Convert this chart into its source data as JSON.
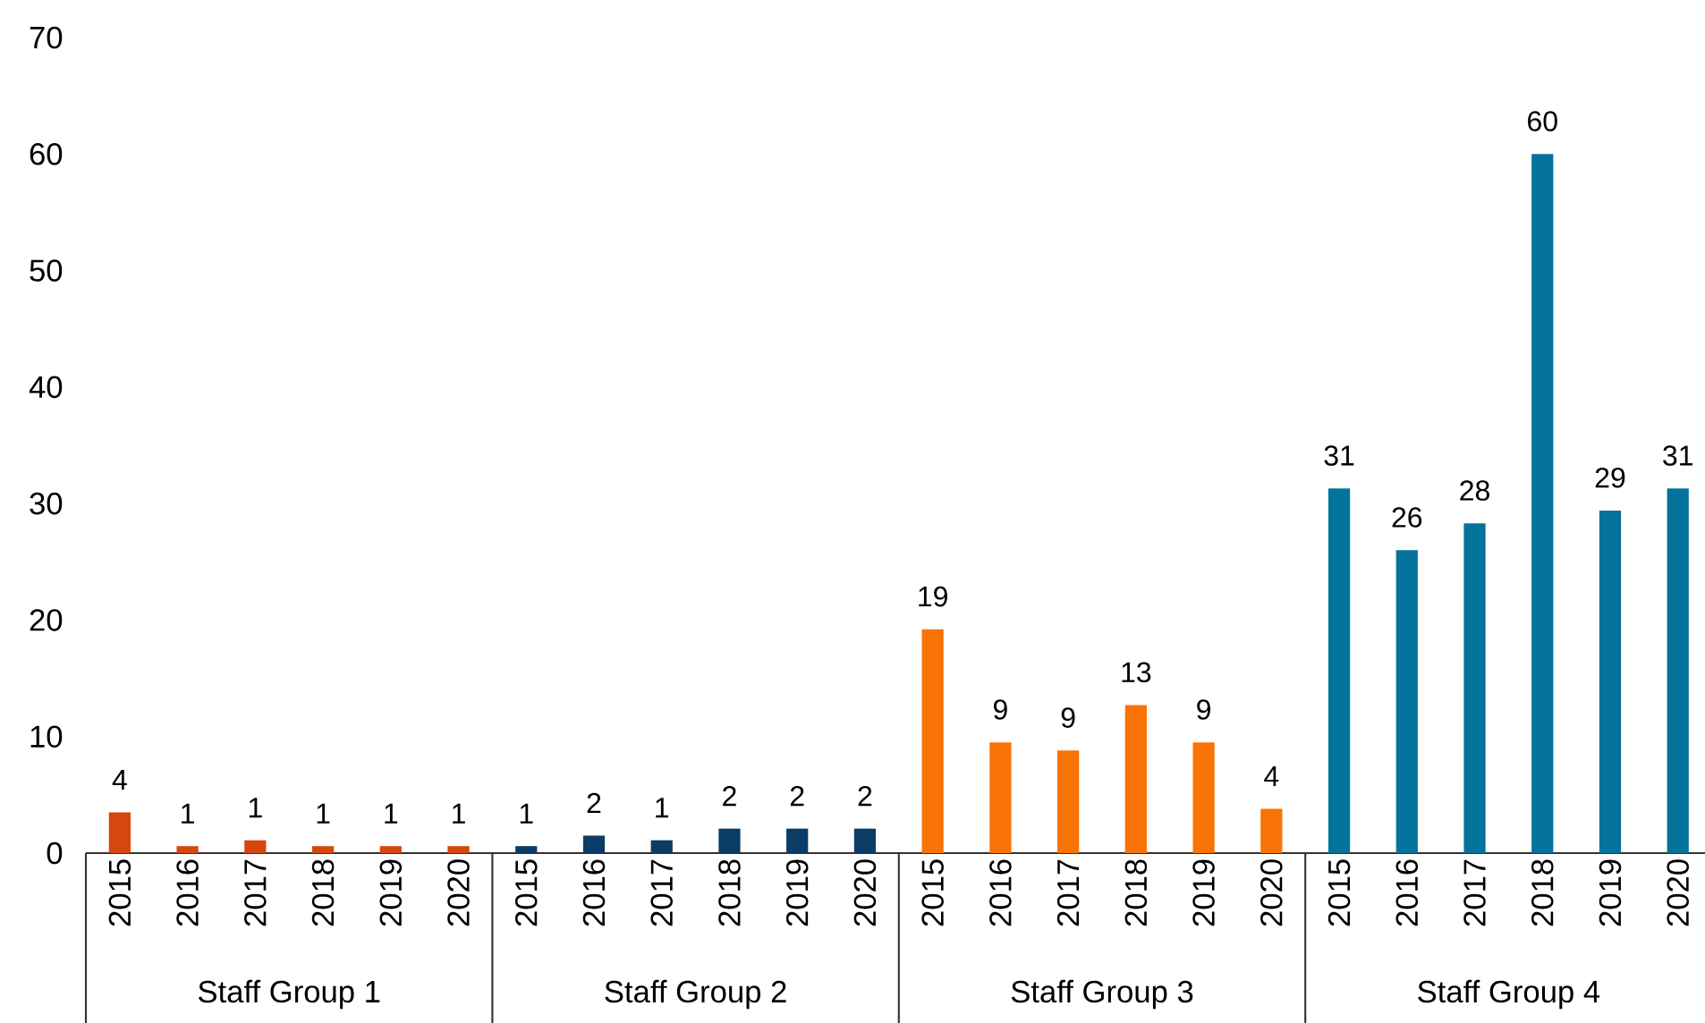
{
  "chart_data": {
    "type": "bar",
    "categories": [
      "2015",
      "2016",
      "2017",
      "2018",
      "2019",
      "2020",
      "2015",
      "2016",
      "2017",
      "2018",
      "2019",
      "2020",
      "2015",
      "2016",
      "2017",
      "2018",
      "2019",
      "2020",
      "2015",
      "2016",
      "2017",
      "2018",
      "2019",
      "2020"
    ],
    "annotations": [
      "Staff Group 1",
      "Staff Group 2",
      "Staff Group 3",
      "Staff Group 4"
    ],
    "ylim": [
      0,
      70
    ],
    "yticks": [
      0,
      10,
      20,
      30,
      40,
      50,
      60,
      70
    ],
    "series": [
      {
        "color": "#d4470f",
        "values": [
          3.5,
          0.6,
          1.1,
          0.6,
          0.6,
          0.6,
          null,
          null,
          null,
          null,
          null,
          null,
          null,
          null,
          null,
          null,
          null,
          null,
          null,
          null,
          null,
          null,
          null,
          null
        ],
        "value_labels": [
          "4",
          "1",
          "1",
          "1",
          "1",
          "1",
          null,
          null,
          null,
          null,
          null,
          null,
          null,
          null,
          null,
          null,
          null,
          null,
          null,
          null,
          null,
          null,
          null,
          null
        ]
      },
      {
        "color": "#0b3c66",
        "values": [
          null,
          null,
          null,
          null,
          null,
          null,
          0.6,
          1.5,
          1.1,
          2.1,
          2.1,
          2.1,
          null,
          null,
          null,
          null,
          null,
          null,
          null,
          null,
          null,
          null,
          null,
          null
        ],
        "value_labels": [
          null,
          null,
          null,
          null,
          null,
          null,
          "1",
          "2",
          "1",
          "2",
          "2",
          "2",
          null,
          null,
          null,
          null,
          null,
          null,
          null,
          null,
          null,
          null,
          null,
          null
        ]
      },
      {
        "color": "#f97306",
        "values": [
          null,
          null,
          null,
          null,
          null,
          null,
          null,
          null,
          null,
          null,
          null,
          null,
          19.2,
          9.5,
          8.8,
          12.7,
          9.5,
          3.8,
          null,
          null,
          null,
          null,
          null,
          null
        ],
        "value_labels": [
          null,
          null,
          null,
          null,
          null,
          null,
          null,
          null,
          null,
          null,
          null,
          null,
          "19",
          "9",
          "9",
          "13",
          "9",
          "4",
          null,
          null,
          null,
          null,
          null,
          null
        ]
      },
      {
        "color": "#03739c",
        "values": [
          null,
          null,
          null,
          null,
          null,
          null,
          null,
          null,
          null,
          null,
          null,
          null,
          null,
          null,
          null,
          null,
          null,
          null,
          31.3,
          26.0,
          28.3,
          60.0,
          29.4,
          31.3
        ],
        "value_labels": [
          null,
          null,
          null,
          null,
          null,
          null,
          null,
          null,
          null,
          null,
          null,
          null,
          null,
          null,
          null,
          null,
          null,
          null,
          "31",
          "26",
          "28",
          "60",
          "29",
          "31"
        ]
      }
    ]
  }
}
